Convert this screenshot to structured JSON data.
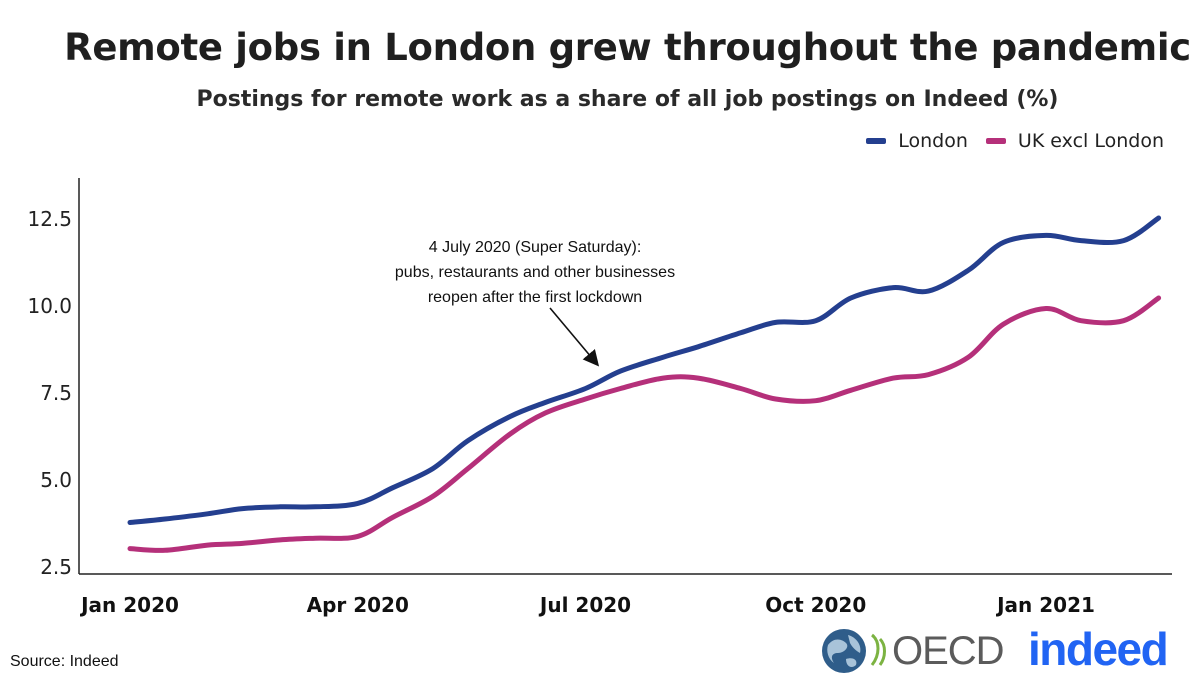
{
  "header": {
    "title": "Remote jobs in London grew throughout the pandemic",
    "subtitle": "Postings for remote work as a share of all job postings on Indeed (%)"
  },
  "legend": [
    {
      "label": "London",
      "color": "#243f8f"
    },
    {
      "label": "UK excl London",
      "color": "#b5307a"
    }
  ],
  "annotation": {
    "lines": [
      "4 July 2020 (Super Saturday):",
      "pubs, restaurants and other businesses",
      "reopen after the first lockdown"
    ],
    "target_date": "2020-07-04",
    "target_series": "London"
  },
  "footer": {
    "source": "Source: Indeed",
    "oecd_label": "OECD",
    "indeed_label": "indeed"
  },
  "chart_data": {
    "type": "line",
    "title": "Remote jobs in London grew throughout the pandemic",
    "subtitle": "Postings for remote work as a share of all job postings on Indeed (%)",
    "xlabel": "",
    "ylabel": "",
    "ylim": [
      2.5,
      13.5
    ],
    "xlim": [
      "2020-01-01",
      "2021-02-28"
    ],
    "yticks": [
      2.5,
      5.0,
      7.5,
      10.0,
      12.5
    ],
    "ytick_labels": [
      "2.5",
      "5.0",
      "7.5",
      "10.0",
      "12.5"
    ],
    "xticks": [
      "2020-01-01",
      "2020-04-01",
      "2020-07-01",
      "2020-10-01",
      "2021-01-01"
    ],
    "xtick_labels": [
      "Jan 2020",
      "Apr 2020",
      "Jul 2020",
      "Oct 2020",
      "Jan 2021"
    ],
    "grid": false,
    "legend_position": "top-right",
    "series": [
      {
        "name": "London",
        "color": "#243f8f",
        "x": [
          "2020-01-01",
          "2020-01-15",
          "2020-02-01",
          "2020-02-15",
          "2020-03-01",
          "2020-03-15",
          "2020-04-01",
          "2020-04-15",
          "2020-05-01",
          "2020-05-15",
          "2020-06-01",
          "2020-06-15",
          "2020-07-01",
          "2020-07-15",
          "2020-08-01",
          "2020-08-15",
          "2020-09-01",
          "2020-09-15",
          "2020-10-01",
          "2020-10-15",
          "2020-11-01",
          "2020-11-15",
          "2020-12-01",
          "2020-12-15",
          "2021-01-01",
          "2021-01-15",
          "2021-02-01",
          "2021-02-15"
        ],
        "values": [
          3.75,
          3.85,
          4.0,
          4.15,
          4.2,
          4.2,
          4.3,
          4.75,
          5.3,
          6.1,
          6.8,
          7.2,
          7.6,
          8.1,
          8.5,
          8.8,
          9.2,
          9.5,
          9.55,
          10.2,
          10.5,
          10.4,
          11.0,
          11.8,
          12.0,
          11.85,
          11.85,
          12.5
        ]
      },
      {
        "name": "UK excl London",
        "color": "#b5307a",
        "x": [
          "2020-01-01",
          "2020-01-15",
          "2020-02-01",
          "2020-02-15",
          "2020-03-01",
          "2020-03-15",
          "2020-04-01",
          "2020-04-15",
          "2020-05-01",
          "2020-05-15",
          "2020-06-01",
          "2020-06-15",
          "2020-07-01",
          "2020-07-15",
          "2020-08-01",
          "2020-08-15",
          "2020-09-01",
          "2020-09-15",
          "2020-10-01",
          "2020-10-15",
          "2020-11-01",
          "2020-11-15",
          "2020-12-01",
          "2020-12-15",
          "2021-01-01",
          "2021-01-15",
          "2021-02-01",
          "2021-02-15"
        ],
        "values": [
          3.0,
          2.95,
          3.1,
          3.15,
          3.25,
          3.3,
          3.35,
          3.9,
          4.5,
          5.3,
          6.3,
          6.9,
          7.3,
          7.6,
          7.9,
          7.9,
          7.6,
          7.3,
          7.25,
          7.55,
          7.9,
          8.0,
          8.5,
          9.45,
          9.9,
          9.55,
          9.55,
          10.2
        ]
      }
    ]
  }
}
